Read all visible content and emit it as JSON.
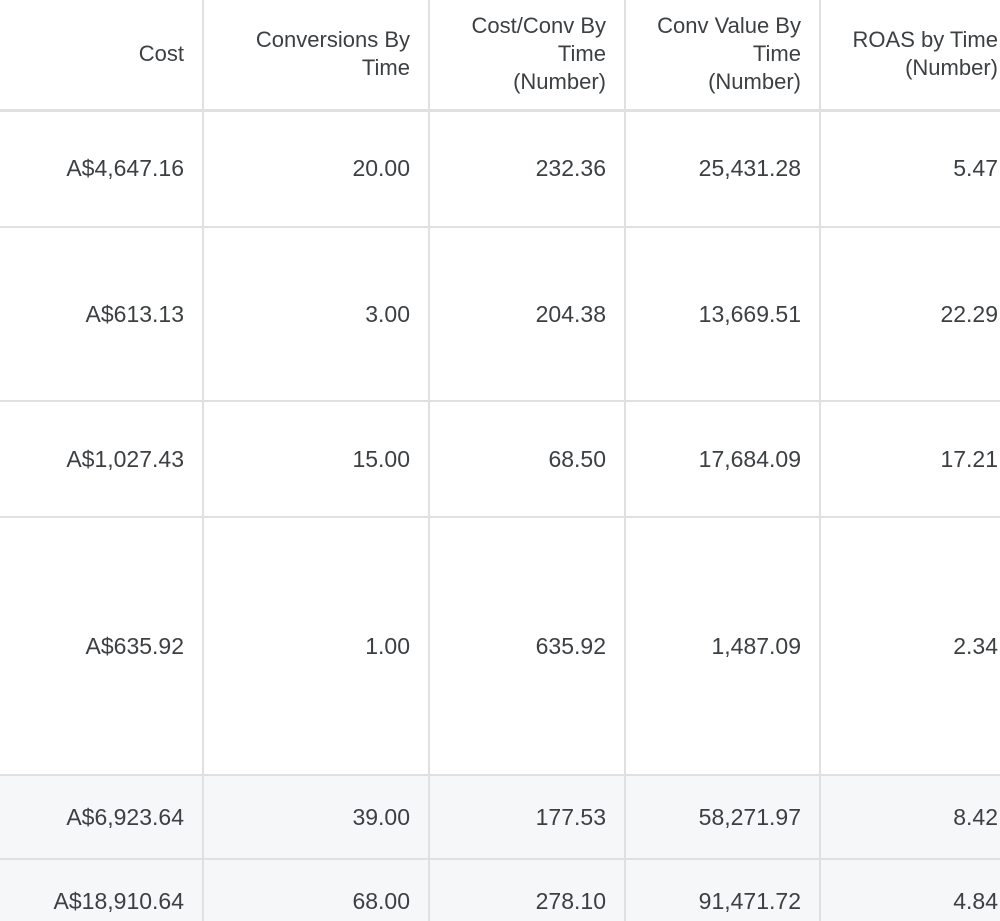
{
  "table": {
    "columns": [
      {
        "lines": [
          "Cost"
        ]
      },
      {
        "lines": [
          "Conversions By",
          "Time"
        ]
      },
      {
        "lines": [
          "Cost/Conv By",
          "Time",
          "(Number)"
        ]
      },
      {
        "lines": [
          "Conv Value By",
          "Time",
          "(Number)"
        ]
      },
      {
        "lines": [
          "ROAS by Time",
          "(Number)"
        ]
      }
    ],
    "rows": [
      {
        "cost": "A$4,647.16",
        "conversions": "20.00",
        "cost_per_conv": "232.36",
        "conv_value": "25,431.28",
        "roas": "5.47"
      },
      {
        "cost": "A$613.13",
        "conversions": "3.00",
        "cost_per_conv": "204.38",
        "conv_value": "13,669.51",
        "roas": "22.29"
      },
      {
        "cost": "A$1,027.43",
        "conversions": "15.00",
        "cost_per_conv": "68.50",
        "conv_value": "17,684.09",
        "roas": "17.21"
      },
      {
        "cost": "A$635.92",
        "conversions": "1.00",
        "cost_per_conv": "635.92",
        "conv_value": "1,487.09",
        "roas": "2.34"
      }
    ],
    "totals": [
      {
        "cost": "A$6,923.64",
        "conversions": "39.00",
        "cost_per_conv": "177.53",
        "conv_value": "58,271.97",
        "roas": "8.42"
      },
      {
        "cost": "A$18,910.64",
        "conversions": "68.00",
        "cost_per_conv": "278.10",
        "conv_value": "91,471.72",
        "roas": "4.84"
      }
    ]
  }
}
